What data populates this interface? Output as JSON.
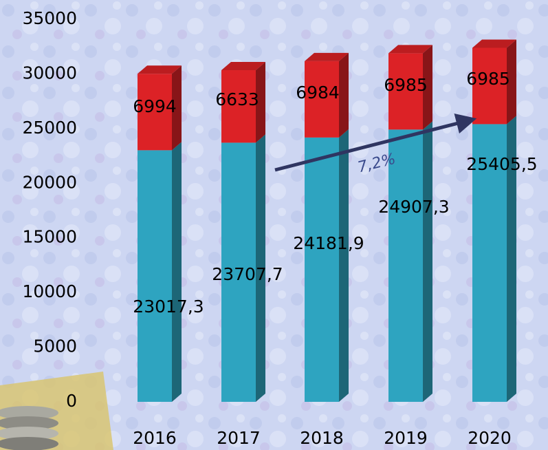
{
  "chart_data": {
    "type": "bar",
    "stacked": true,
    "categories": [
      "2016",
      "2017",
      "2018",
      "2019",
      "2020"
    ],
    "series": [
      {
        "color": "#2ea4c0",
        "values": [
          23017.3,
          23707.7,
          24181.9,
          24907.3,
          25405.5
        ],
        "value_labels": [
          "23017,3",
          "23707,7",
          "24181,9",
          "24907,3",
          "25405,5"
        ]
      },
      {
        "color": "#dc2226",
        "values": [
          6994,
          6633,
          6984,
          6985,
          6985
        ]
      }
    ],
    "ylim": [
      0,
      35000
    ],
    "yticks": [
      0,
      5000,
      10000,
      15000,
      20000,
      25000,
      30000,
      35000
    ],
    "annotation": "7,2%"
  }
}
